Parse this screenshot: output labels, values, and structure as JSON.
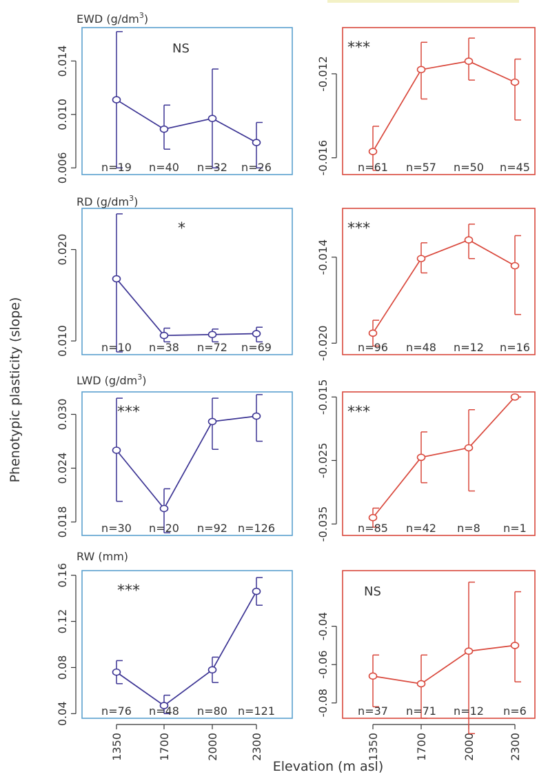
{
  "figure": {
    "ylabel": "Phenotypic plasticity (slope)",
    "xlabel": "Elevation (m asl)",
    "x_ticks": [
      "1350",
      "1700",
      "2000",
      "2300"
    ],
    "colors": {
      "left": "#3b3393",
      "right": "#d9473b",
      "left_frame": "#5aa0cf",
      "right_frame": "#d9473b",
      "axis": "#333333",
      "text": "#333333",
      "legend_swatch": "#f3f1c6"
    }
  },
  "chart_data": [
    {
      "type": "line",
      "panel": "EWD-left",
      "label": "EWD (g/dm3)",
      "label_main": "EWD (g/dm",
      "label_sup": "3",
      "label_tail": ")",
      "significance": "NS",
      "x": [
        1350,
        1700,
        2000,
        2300
      ],
      "y": [
        0.0111,
        0.0089,
        0.0097,
        0.0079
      ],
      "err_low": [
        0.006,
        0.0074,
        0.006,
        0.006
      ],
      "err_high": [
        0.0162,
        0.0107,
        0.0134,
        0.0094
      ],
      "n": [
        "n=19",
        "n=40",
        "n=32",
        "n=26"
      ],
      "ylim": [
        0.0055,
        0.0165
      ],
      "yticks": [
        "0.006",
        "0.010",
        "0.014"
      ],
      "ytick_values": [
        0.006,
        0.01,
        0.014
      ],
      "ylabels_shown": true
    },
    {
      "type": "line",
      "panel": "EWD-right",
      "significance": "***",
      "x": [
        1350,
        1700,
        2000,
        2300
      ],
      "y": [
        -0.0157,
        -0.0118,
        -0.0114,
        -0.0124
      ],
      "err_low": [
        -0.0166,
        -0.0132,
        -0.0123,
        -0.0142
      ],
      "err_high": [
        -0.0145,
        -0.0105,
        -0.0103,
        -0.0113
      ],
      "n": [
        "n=61",
        "n=57",
        "n=50",
        "n=45"
      ],
      "ylim": [
        -0.0168,
        -0.0098
      ],
      "yticks": [
        "-0.016",
        "-0.012"
      ],
      "ytick_values": [
        -0.016,
        -0.012
      ],
      "ylabels_shown": true
    },
    {
      "type": "line",
      "panel": "RD-left",
      "label": "RD (g/dm3)",
      "label_main": "RD (g/dm",
      "label_sup": "3",
      "label_tail": ")",
      "significance": "*",
      "x": [
        1350,
        1700,
        2000,
        2300
      ],
      "y": [
        0.0168,
        0.0106,
        0.0107,
        0.0108
      ],
      "err_low": [
        0.0088,
        0.0099,
        0.0099,
        0.0099
      ],
      "err_high": [
        0.0239,
        0.0114,
        0.0113,
        0.0115
      ],
      "n": [
        "n=10",
        "n=38",
        "n=72",
        "n=69"
      ],
      "ylim": [
        0.0085,
        0.0245
      ],
      "yticks": [
        "0.010",
        "0.020"
      ],
      "ytick_values": [
        0.01,
        0.02
      ],
      "ylabels_shown": true
    },
    {
      "type": "line",
      "panel": "RD-right",
      "significance": "***",
      "x": [
        1350,
        1700,
        2000,
        2300
      ],
      "y": [
        -0.0193,
        -0.0141,
        -0.0128,
        -0.0146
      ],
      "err_low": [
        -0.0202,
        -0.0151,
        -0.0141,
        -0.018
      ],
      "err_high": [
        -0.0184,
        -0.013,
        -0.0117,
        -0.0125
      ],
      "n": [
        "n=96",
        "n=48",
        "n=12",
        "n=16"
      ],
      "ylim": [
        -0.0208,
        -0.0106
      ],
      "yticks": [
        "-0.020",
        "-0.014"
      ],
      "ytick_values": [
        -0.02,
        -0.014
      ],
      "ylabels_shown": true
    },
    {
      "type": "line",
      "panel": "LWD-left",
      "label": "LWD (g/dm3)",
      "label_main": "LWD (g/dm",
      "label_sup": "3",
      "label_tail": ")",
      "significance": "***",
      "x": [
        1350,
        1700,
        2000,
        2300
      ],
      "y": [
        0.026,
        0.0195,
        0.0292,
        0.0298
      ],
      "err_low": [
        0.0203,
        0.0168,
        0.0261,
        0.027
      ],
      "err_high": [
        0.0318,
        0.0217,
        0.0318,
        0.0322
      ],
      "n": [
        "n=30",
        "n=20",
        "n=92",
        "n=126"
      ],
      "ylim": [
        0.0165,
        0.0325
      ],
      "yticks": [
        "0.018",
        "0.024",
        "0.030"
      ],
      "ytick_values": [
        0.018,
        0.024,
        0.03
      ],
      "ylabels_shown": true
    },
    {
      "type": "line",
      "panel": "LWD-right",
      "significance": "***",
      "x": [
        1350,
        1700,
        2000,
        2300
      ],
      "y": [
        -0.034,
        -0.0245,
        -0.023,
        -0.015
      ],
      "err_low": [
        -0.0355,
        -0.0285,
        -0.0298,
        -0.015
      ],
      "err_high": [
        -0.0325,
        -0.0205,
        -0.017,
        -0.015
      ],
      "n": [
        "n=85",
        "n=42",
        "n=8",
        "n=1"
      ],
      "ylim": [
        -0.0368,
        -0.0142
      ],
      "yticks": [
        "-0.035",
        "-0.025",
        "-0.015"
      ],
      "ytick_values": [
        -0.035,
        -0.025,
        -0.015
      ],
      "ylabels_shown": true
    },
    {
      "type": "line",
      "panel": "RW-left",
      "label": "RW (mm)",
      "label_main": "RW (mm)",
      "label_sup": "",
      "label_tail": "",
      "significance": "***",
      "x": [
        1350,
        1700,
        2000,
        2300
      ],
      "y": [
        0.076,
        0.047,
        0.078,
        0.146
      ],
      "err_low": [
        0.066,
        0.04,
        0.067,
        0.134
      ],
      "err_high": [
        0.086,
        0.056,
        0.089,
        0.158
      ],
      "n": [
        "n=76",
        "n=48",
        "n=80",
        "n=121"
      ],
      "ylim": [
        0.036,
        0.164
      ],
      "yticks": [
        "0.04",
        "0.08",
        "0.12",
        "0.16"
      ],
      "ytick_values": [
        0.04,
        0.08,
        0.12,
        0.16
      ],
      "ylabels_shown": true
    },
    {
      "type": "line",
      "panel": "RW-right",
      "significance": "NS",
      "x": [
        1350,
        1700,
        2000,
        2300
      ],
      "y": [
        -0.066,
        -0.07,
        -0.053,
        -0.05
      ],
      "err_low": [
        -0.082,
        -0.088,
        -0.096,
        -0.069
      ],
      "err_high": [
        -0.055,
        -0.055,
        -0.017,
        -0.022
      ],
      "n": [
        "n=37",
        "n=71",
        "n=12",
        "n=6"
      ],
      "ylim": [
        -0.088,
        -0.011
      ],
      "yticks": [
        "-0.08",
        "-0.06",
        "-0.04"
      ],
      "ytick_values": [
        -0.08,
        -0.06,
        -0.04
      ],
      "ylabels_shown": true
    }
  ]
}
